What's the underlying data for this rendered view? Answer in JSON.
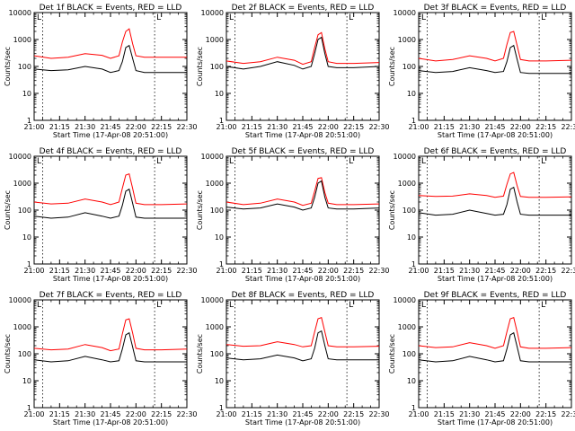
{
  "chart_data": {
    "type": "line",
    "scale": "log",
    "ylim": [
      1,
      10000
    ],
    "xlim": [
      "21:00",
      "22:30"
    ],
    "x_ticks": [
      "21:00",
      "21:15",
      "21:30",
      "21:45",
      "22:00",
      "22:15",
      "22:30"
    ],
    "y_ticks": [
      "1",
      "10",
      "100",
      "1000",
      "10000"
    ],
    "ylabel": "Counts/sec",
    "xlabel": "Start Time (17-Apr-08 20:51:00)",
    "marker_label": "L",
    "vertical_dotted_lines": [
      "21:05",
      "22:11"
    ],
    "colors": {
      "events": "#000000",
      "lld": "#ff0000"
    },
    "panels": [
      {
        "title": "Det 1f BLACK = Events, RED = LLD",
        "x": [
          "21:00",
          "21:10",
          "21:20",
          "21:30",
          "21:40",
          "21:45",
          "21:50",
          "21:52",
          "21:54",
          "21:56",
          "21:58",
          "22:00",
          "22:05",
          "22:15",
          "22:30"
        ],
        "events": [
          80,
          70,
          75,
          100,
          80,
          60,
          70,
          150,
          500,
          600,
          200,
          70,
          60,
          60,
          60
        ],
        "lld": [
          250,
          200,
          220,
          300,
          260,
          200,
          250,
          800,
          2000,
          2500,
          700,
          250,
          220,
          220,
          220
        ]
      },
      {
        "title": "Det 2f BLACK = Events, RED = LLD",
        "x": [
          "21:00",
          "21:10",
          "21:20",
          "21:30",
          "21:40",
          "21:45",
          "21:50",
          "21:52",
          "21:54",
          "21:56",
          "21:58",
          "22:00",
          "22:05",
          "22:15",
          "22:30"
        ],
        "events": [
          100,
          80,
          100,
          150,
          110,
          80,
          100,
          300,
          1000,
          1200,
          300,
          100,
          90,
          90,
          100
        ],
        "lld": [
          160,
          130,
          150,
          220,
          170,
          120,
          150,
          500,
          1500,
          1800,
          450,
          150,
          130,
          130,
          140
        ]
      },
      {
        "title": "Det 3f BLACK = Events, RED = LLD",
        "x": [
          "21:00",
          "21:10",
          "21:20",
          "21:30",
          "21:40",
          "21:45",
          "21:50",
          "21:52",
          "21:54",
          "21:56",
          "21:58",
          "22:00",
          "22:05",
          "22:15",
          "22:30"
        ],
        "events": [
          70,
          60,
          65,
          90,
          70,
          60,
          65,
          150,
          500,
          600,
          180,
          60,
          55,
          55,
          55
        ],
        "lld": [
          200,
          160,
          180,
          250,
          200,
          160,
          200,
          650,
          1800,
          2000,
          600,
          180,
          160,
          160,
          170
        ]
      },
      {
        "title": "Det 4f BLACK = Events, RED = LLD",
        "x": [
          "21:00",
          "21:10",
          "21:20",
          "21:30",
          "21:40",
          "21:45",
          "21:50",
          "21:52",
          "21:54",
          "21:56",
          "21:58",
          "22:00",
          "22:05",
          "22:15",
          "22:30"
        ],
        "events": [
          60,
          50,
          55,
          80,
          60,
          50,
          60,
          150,
          500,
          600,
          180,
          55,
          50,
          50,
          50
        ],
        "lld": [
          200,
          170,
          180,
          260,
          200,
          160,
          200,
          650,
          2000,
          2200,
          650,
          180,
          160,
          160,
          170
        ]
      },
      {
        "title": "Det 5f BLACK = Events, RED = LLD",
        "x": [
          "21:00",
          "21:10",
          "21:20",
          "21:30",
          "21:40",
          "21:45",
          "21:50",
          "21:52",
          "21:54",
          "21:56",
          "21:58",
          "22:00",
          "22:05",
          "22:15",
          "22:30"
        ],
        "events": [
          130,
          110,
          120,
          170,
          130,
          100,
          120,
          300,
          1000,
          1200,
          300,
          120,
          110,
          110,
          120
        ],
        "lld": [
          200,
          160,
          180,
          260,
          200,
          150,
          180,
          500,
          1500,
          1600,
          450,
          180,
          160,
          160,
          170
        ]
      },
      {
        "title": "Det 6f BLACK = Events, RED = LLD",
        "x": [
          "21:00",
          "21:10",
          "21:20",
          "21:30",
          "21:40",
          "21:45",
          "21:50",
          "21:52",
          "21:54",
          "21:56",
          "21:58",
          "22:00",
          "22:05",
          "22:15",
          "22:30"
        ],
        "events": [
          80,
          65,
          70,
          100,
          75,
          65,
          70,
          160,
          600,
          700,
          200,
          70,
          65,
          65,
          65
        ],
        "lld": [
          350,
          320,
          330,
          400,
          350,
          300,
          330,
          900,
          2200,
          2500,
          800,
          320,
          300,
          300,
          310
        ]
      },
      {
        "title": "Det 7f BLACK = Events, RED = LLD",
        "x": [
          "21:00",
          "21:10",
          "21:20",
          "21:30",
          "21:40",
          "21:45",
          "21:50",
          "21:52",
          "21:54",
          "21:56",
          "21:58",
          "22:00",
          "22:05",
          "22:15",
          "22:30"
        ],
        "events": [
          60,
          50,
          55,
          80,
          60,
          50,
          55,
          150,
          500,
          600,
          180,
          55,
          50,
          50,
          50
        ],
        "lld": [
          160,
          140,
          150,
          220,
          170,
          130,
          150,
          550,
          1800,
          2000,
          600,
          160,
          140,
          140,
          150
        ]
      },
      {
        "title": "Det 8f BLACK = Events, RED = LLD",
        "x": [
          "21:00",
          "21:10",
          "21:20",
          "21:30",
          "21:40",
          "21:45",
          "21:50",
          "21:52",
          "21:54",
          "21:56",
          "21:58",
          "22:00",
          "22:05",
          "22:15",
          "22:30"
        ],
        "events": [
          70,
          60,
          65,
          90,
          70,
          55,
          65,
          160,
          600,
          700,
          200,
          65,
          60,
          60,
          60
        ],
        "lld": [
          220,
          190,
          200,
          280,
          220,
          180,
          200,
          650,
          2000,
          2200,
          650,
          200,
          180,
          180,
          190
        ]
      },
      {
        "title": "Det 9f BLACK = Events, RED = LLD",
        "x": [
          "21:00",
          "21:10",
          "21:20",
          "21:30",
          "21:40",
          "21:45",
          "21:50",
          "21:52",
          "21:54",
          "21:56",
          "21:58",
          "22:00",
          "22:05",
          "22:15",
          "22:30"
        ],
        "events": [
          60,
          50,
          55,
          80,
          60,
          50,
          55,
          150,
          500,
          600,
          180,
          55,
          50,
          50,
          50
        ],
        "lld": [
          200,
          170,
          180,
          260,
          200,
          160,
          200,
          650,
          2000,
          2200,
          650,
          180,
          160,
          160,
          170
        ]
      }
    ]
  }
}
